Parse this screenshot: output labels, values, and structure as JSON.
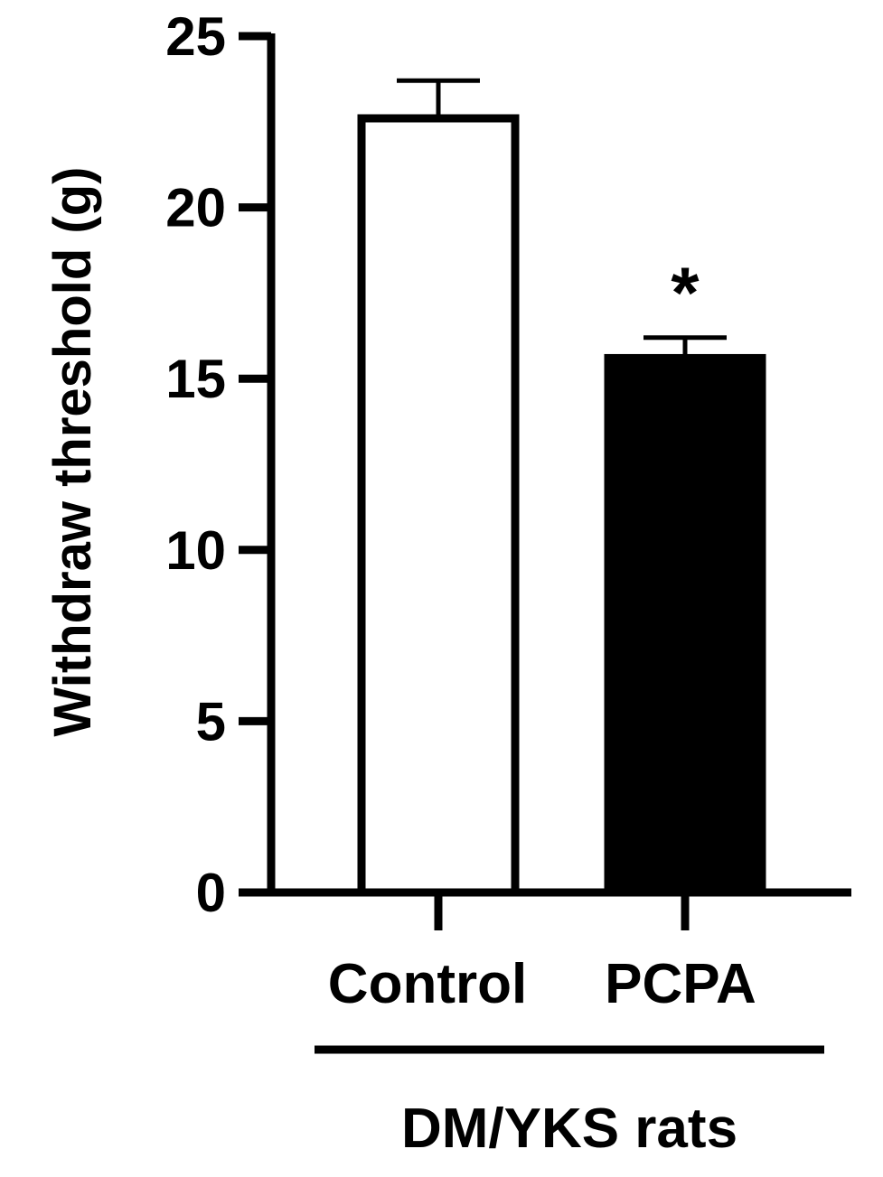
{
  "chart_data": {
    "type": "bar",
    "categories": [
      "Control",
      "PCPA"
    ],
    "values": [
      22.6,
      15.6
    ],
    "errors": [
      1.1,
      0.6
    ],
    "significance": [
      "",
      "*"
    ],
    "bar_fill": [
      "#ffffff",
      "#000000"
    ],
    "bar_stroke": "#000000",
    "ylabel": "Withdraw threshold (g)",
    "xlabel": "",
    "group_label": "DM/YKS rats",
    "ylim": [
      0,
      25
    ],
    "yticks": [
      "0",
      "5",
      "10",
      "15",
      "20",
      "25"
    ],
    "grid": false,
    "legend": "none"
  }
}
